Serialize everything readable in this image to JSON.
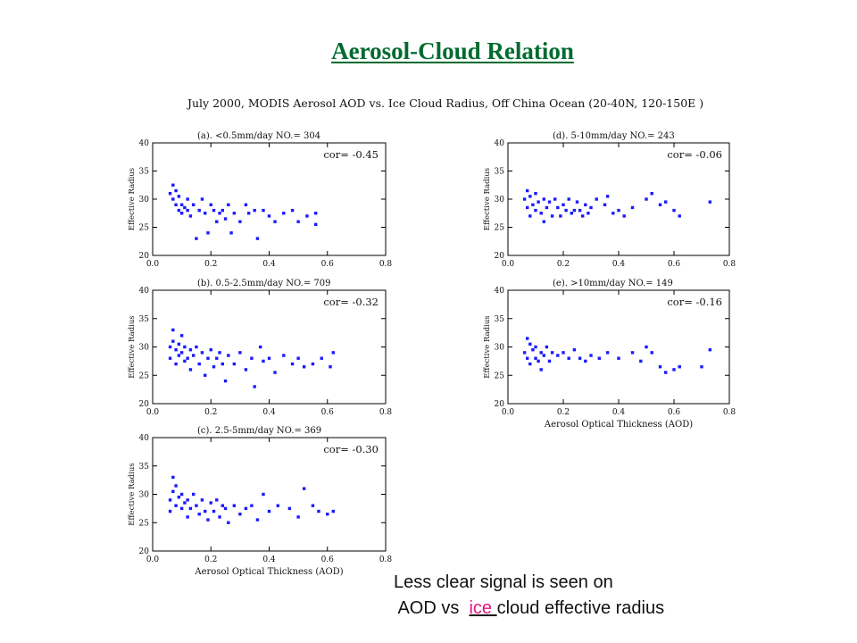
{
  "slide": {
    "title": "Aerosol-Cloud Relation",
    "figure_title": "July 2000, MODIS Aerosol AOD vs. Ice Cloud Radius,  Off China Ocean (20-40N, 120-150E )",
    "caption_line1": "Less clear signal is seen on",
    "caption_line2_pre": " AOD vs  ",
    "caption_line2_ice": "ice ",
    "caption_line2_post": "cloud effective radius"
  },
  "colors": {
    "title": "#006b2e",
    "points": "#1a1aff",
    "axes": "#000000",
    "ice_highlight": "#e3167f"
  },
  "chart_data": [
    {
      "type": "scatter",
      "panel": "a",
      "title": "(a). <0.5mm/day   NO.=   304",
      "annotation": "cor= -0.45",
      "xlabel": "",
      "ylabel": "Effective Radius",
      "xlim": [
        0,
        0.8
      ],
      "ylim": [
        20,
        40
      ],
      "xticks": [
        "0.0",
        "0.2",
        "0.4",
        "0.6",
        "0.8"
      ],
      "yticks": [
        "20",
        "25",
        "30",
        "35",
        "40"
      ],
      "points": [
        [
          0.06,
          31
        ],
        [
          0.07,
          32.5
        ],
        [
          0.07,
          30
        ],
        [
          0.08,
          29
        ],
        [
          0.08,
          31.5
        ],
        [
          0.09,
          28
        ],
        [
          0.09,
          30.5
        ],
        [
          0.1,
          29
        ],
        [
          0.1,
          27.5
        ],
        [
          0.11,
          28.5
        ],
        [
          0.12,
          28
        ],
        [
          0.12,
          30
        ],
        [
          0.13,
          27
        ],
        [
          0.14,
          29
        ],
        [
          0.15,
          23
        ],
        [
          0.16,
          28
        ],
        [
          0.17,
          30
        ],
        [
          0.18,
          27.5
        ],
        [
          0.19,
          24
        ],
        [
          0.2,
          29
        ],
        [
          0.21,
          28
        ],
        [
          0.22,
          26
        ],
        [
          0.23,
          27.5
        ],
        [
          0.24,
          28
        ],
        [
          0.25,
          26.5
        ],
        [
          0.26,
          29
        ],
        [
          0.27,
          24
        ],
        [
          0.28,
          27.5
        ],
        [
          0.3,
          26
        ],
        [
          0.32,
          29
        ],
        [
          0.33,
          27.5
        ],
        [
          0.35,
          28
        ],
        [
          0.36,
          23
        ],
        [
          0.38,
          28
        ],
        [
          0.4,
          27
        ],
        [
          0.42,
          26
        ],
        [
          0.45,
          27.5
        ],
        [
          0.48,
          28
        ],
        [
          0.5,
          26
        ],
        [
          0.53,
          27
        ],
        [
          0.56,
          27.5
        ],
        [
          0.56,
          25.5
        ]
      ]
    },
    {
      "type": "scatter",
      "panel": "b",
      "title": "(b). 0.5-2.5mm/day   NO.=   709",
      "annotation": "cor= -0.32",
      "xlabel": "",
      "ylabel": "Effective Radius",
      "xlim": [
        0,
        0.8
      ],
      "ylim": [
        20,
        40
      ],
      "xticks": [
        "0.0",
        "0.2",
        "0.4",
        "0.6",
        "0.8"
      ],
      "yticks": [
        "20",
        "25",
        "30",
        "35",
        "40"
      ],
      "points": [
        [
          0.06,
          30
        ],
        [
          0.06,
          28
        ],
        [
          0.07,
          33
        ],
        [
          0.07,
          31
        ],
        [
          0.08,
          29.5
        ],
        [
          0.08,
          27
        ],
        [
          0.09,
          30.5
        ],
        [
          0.09,
          28.5
        ],
        [
          0.1,
          32
        ],
        [
          0.1,
          29
        ],
        [
          0.11,
          27.5
        ],
        [
          0.11,
          30
        ],
        [
          0.12,
          28
        ],
        [
          0.13,
          29.5
        ],
        [
          0.13,
          26
        ],
        [
          0.14,
          28.5
        ],
        [
          0.15,
          30
        ],
        [
          0.16,
          27
        ],
        [
          0.17,
          29
        ],
        [
          0.18,
          25
        ],
        [
          0.19,
          28
        ],
        [
          0.2,
          29.5
        ],
        [
          0.21,
          26.5
        ],
        [
          0.22,
          28
        ],
        [
          0.23,
          29
        ],
        [
          0.24,
          27
        ],
        [
          0.25,
          24
        ],
        [
          0.26,
          28.5
        ],
        [
          0.28,
          27
        ],
        [
          0.3,
          29
        ],
        [
          0.32,
          26
        ],
        [
          0.34,
          28
        ],
        [
          0.35,
          23
        ],
        [
          0.37,
          30
        ],
        [
          0.38,
          27.5
        ],
        [
          0.4,
          28
        ],
        [
          0.42,
          25.5
        ],
        [
          0.45,
          28.5
        ],
        [
          0.48,
          27
        ],
        [
          0.5,
          28
        ],
        [
          0.52,
          26.5
        ],
        [
          0.55,
          27
        ],
        [
          0.58,
          28
        ],
        [
          0.61,
          26.5
        ],
        [
          0.62,
          29
        ]
      ]
    },
    {
      "type": "scatter",
      "panel": "c",
      "title": "(c). 2.5-5mm/day   NO.=   369",
      "annotation": "cor= -0.30",
      "xlabel": "Aerosol Optical Thickness (AOD)",
      "ylabel": "Effective Radius",
      "xlim": [
        0,
        0.8
      ],
      "ylim": [
        20,
        40
      ],
      "xticks": [
        "0.0",
        "0.2",
        "0.4",
        "0.6",
        "0.8"
      ],
      "yticks": [
        "20",
        "25",
        "30",
        "35",
        "40"
      ],
      "points": [
        [
          0.06,
          29
        ],
        [
          0.06,
          27
        ],
        [
          0.07,
          33
        ],
        [
          0.07,
          30.5
        ],
        [
          0.08,
          28
        ],
        [
          0.08,
          31.5
        ],
        [
          0.09,
          29.5
        ],
        [
          0.1,
          27.5
        ],
        [
          0.1,
          30
        ],
        [
          0.11,
          28.5
        ],
        [
          0.12,
          26
        ],
        [
          0.12,
          29
        ],
        [
          0.13,
          27.5
        ],
        [
          0.14,
          30
        ],
        [
          0.15,
          28
        ],
        [
          0.16,
          26.5
        ],
        [
          0.17,
          29
        ],
        [
          0.18,
          27
        ],
        [
          0.19,
          25.5
        ],
        [
          0.2,
          28.5
        ],
        [
          0.21,
          27
        ],
        [
          0.22,
          29
        ],
        [
          0.23,
          26
        ],
        [
          0.24,
          28
        ],
        [
          0.25,
          27.5
        ],
        [
          0.26,
          25
        ],
        [
          0.28,
          28
        ],
        [
          0.3,
          26.5
        ],
        [
          0.32,
          27.5
        ],
        [
          0.34,
          28
        ],
        [
          0.36,
          25.5
        ],
        [
          0.38,
          30
        ],
        [
          0.4,
          27
        ],
        [
          0.43,
          28
        ],
        [
          0.47,
          27.5
        ],
        [
          0.5,
          26
        ],
        [
          0.52,
          31
        ],
        [
          0.55,
          28
        ],
        [
          0.57,
          27
        ],
        [
          0.6,
          26.5
        ],
        [
          0.62,
          27
        ]
      ]
    },
    {
      "type": "scatter",
      "panel": "d",
      "title": "(d). 5-10mm/day   NO.=   243",
      "annotation": "cor= -0.06",
      "xlabel": "",
      "ylabel": "Effective Radius",
      "xlim": [
        0,
        0.8
      ],
      "ylim": [
        20,
        40
      ],
      "xticks": [
        "0.0",
        "0.2",
        "0.4",
        "0.6",
        "0.8"
      ],
      "yticks": [
        "20",
        "25",
        "30",
        "35",
        "40"
      ],
      "points": [
        [
          0.06,
          30
        ],
        [
          0.07,
          31.5
        ],
        [
          0.07,
          28.5
        ],
        [
          0.08,
          30.5
        ],
        [
          0.08,
          27
        ],
        [
          0.09,
          29
        ],
        [
          0.1,
          31
        ],
        [
          0.1,
          28
        ],
        [
          0.11,
          29.5
        ],
        [
          0.12,
          27.5
        ],
        [
          0.13,
          30
        ],
        [
          0.13,
          26
        ],
        [
          0.14,
          28.5
        ],
        [
          0.15,
          29.5
        ],
        [
          0.16,
          27
        ],
        [
          0.17,
          30
        ],
        [
          0.18,
          28.5
        ],
        [
          0.19,
          27
        ],
        [
          0.2,
          29
        ],
        [
          0.21,
          28
        ],
        [
          0.22,
          30
        ],
        [
          0.23,
          27.5
        ],
        [
          0.24,
          28
        ],
        [
          0.25,
          29.5
        ],
        [
          0.26,
          28
        ],
        [
          0.27,
          27
        ],
        [
          0.28,
          29
        ],
        [
          0.29,
          27.5
        ],
        [
          0.3,
          28.5
        ],
        [
          0.32,
          30
        ],
        [
          0.35,
          29
        ],
        [
          0.36,
          30.5
        ],
        [
          0.38,
          27.5
        ],
        [
          0.4,
          28
        ],
        [
          0.42,
          27
        ],
        [
          0.45,
          28.5
        ],
        [
          0.5,
          30
        ],
        [
          0.52,
          31
        ],
        [
          0.55,
          29
        ],
        [
          0.57,
          29.5
        ],
        [
          0.6,
          28
        ],
        [
          0.62,
          27
        ],
        [
          0.73,
          29.5
        ]
      ]
    },
    {
      "type": "scatter",
      "panel": "e",
      "title": "(e). >10mm/day   NO.=   149",
      "annotation": "cor= -0.16",
      "xlabel": "Aerosol Optical Thickness (AOD)",
      "ylabel": "Effective Radius",
      "xlim": [
        0,
        0.8
      ],
      "ylim": [
        20,
        40
      ],
      "xticks": [
        "0.0",
        "0.2",
        "0.4",
        "0.6",
        "0.8"
      ],
      "yticks": [
        "20",
        "25",
        "30",
        "35",
        "40"
      ],
      "points": [
        [
          0.06,
          29
        ],
        [
          0.07,
          31.5
        ],
        [
          0.07,
          28
        ],
        [
          0.08,
          30.5
        ],
        [
          0.08,
          27
        ],
        [
          0.09,
          29.5
        ],
        [
          0.1,
          28
        ],
        [
          0.1,
          30
        ],
        [
          0.11,
          27.5
        ],
        [
          0.12,
          29
        ],
        [
          0.12,
          26
        ],
        [
          0.13,
          28.5
        ],
        [
          0.14,
          30
        ],
        [
          0.15,
          27.5
        ],
        [
          0.16,
          29
        ],
        [
          0.18,
          28.5
        ],
        [
          0.2,
          29
        ],
        [
          0.22,
          28
        ],
        [
          0.24,
          29.5
        ],
        [
          0.26,
          28
        ],
        [
          0.28,
          27.5
        ],
        [
          0.3,
          28.5
        ],
        [
          0.33,
          28
        ],
        [
          0.36,
          29
        ],
        [
          0.4,
          28
        ],
        [
          0.45,
          29
        ],
        [
          0.48,
          27.5
        ],
        [
          0.5,
          30
        ],
        [
          0.52,
          29
        ],
        [
          0.55,
          26.5
        ],
        [
          0.57,
          25.5
        ],
        [
          0.6,
          26
        ],
        [
          0.62,
          26.5
        ],
        [
          0.7,
          26.5
        ],
        [
          0.73,
          29.5
        ]
      ]
    }
  ]
}
